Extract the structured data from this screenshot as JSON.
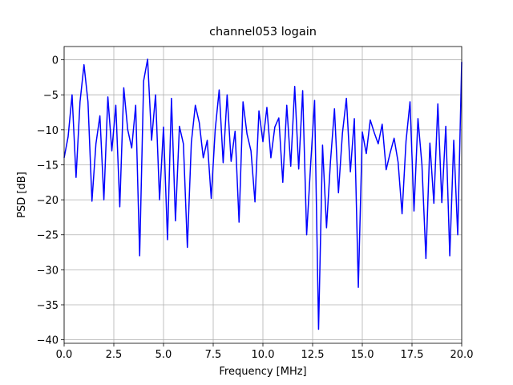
{
  "chart_data": {
    "type": "line",
    "title": "channel053 logain",
    "xlabel": "Frequency [MHz]",
    "ylabel": "PSD [dB]",
    "x": [
      0,
      0.2,
      0.4,
      0.6,
      0.8,
      1,
      1.2,
      1.4,
      1.6,
      1.8,
      2,
      2.2,
      2.4,
      2.6,
      2.8,
      3,
      3.2,
      3.4,
      3.6,
      3.8,
      4,
      4.2,
      4.4,
      4.6,
      4.8,
      5,
      5.2,
      5.4,
      5.6,
      5.8,
      6,
      6.2,
      6.4,
      6.6,
      6.8,
      7,
      7.2,
      7.4,
      7.6,
      7.8,
      8,
      8.2,
      8.4,
      8.6,
      8.8,
      9,
      9.2,
      9.4,
      9.6,
      9.8,
      10,
      10.2,
      10.4,
      10.6,
      10.8,
      11,
      11.2,
      11.4,
      11.6,
      11.8,
      12,
      12.2,
      12.4,
      12.6,
      12.8,
      13,
      13.2,
      13.4,
      13.6,
      13.8,
      14,
      14.2,
      14.4,
      14.6,
      14.8,
      15,
      15.2,
      15.4,
      15.6,
      15.8,
      16,
      16.2,
      16.4,
      16.6,
      16.8,
      17,
      17.2,
      17.4,
      17.6,
      17.8,
      18,
      18.2,
      18.4,
      18.6,
      18.8,
      19,
      19.2,
      19.4,
      19.6,
      19.8,
      20
    ],
    "series": [
      {
        "name": "PSD",
        "color": "#0000ff",
        "values": [
          -14,
          -11,
          -5,
          -16.8,
          -6,
          -0.7,
          -6,
          -20.2,
          -12,
          -8,
          -20,
          -5.3,
          -13,
          -6.5,
          -21,
          -4,
          -10,
          -12.6,
          -6.5,
          -28,
          -3,
          0.1,
          -11.5,
          -5,
          -20,
          -9.6,
          -25.7,
          -5.5,
          -23,
          -9.5,
          -12,
          -26.8,
          -11.8,
          -6.5,
          -9,
          -14,
          -11.5,
          -19.8,
          -10,
          -4.3,
          -14.7,
          -5,
          -14.5,
          -10.2,
          -23.2,
          -6,
          -10.6,
          -13,
          -20.3,
          -7.3,
          -11.7,
          -6.8,
          -14,
          -9.6,
          -8.3,
          -17.5,
          -6.5,
          -15.2,
          -3.8,
          -15.6,
          -4.4,
          -25,
          -15,
          -5.8,
          -38.5,
          -12.2,
          -24,
          -14.5,
          -7,
          -19,
          -10.5,
          -5.5,
          -16,
          -8.4,
          -32.5,
          -10.3,
          -13.4,
          -8.6,
          -10.4,
          -12,
          -9.2,
          -15.7,
          -13.3,
          -11.2,
          -14.6,
          -22,
          -11.6,
          -6,
          -21.6,
          -8.4,
          -15,
          -28.4,
          -11.9,
          -20.5,
          -6.3,
          -20.4,
          -9.5,
          -28,
          -11.5,
          -25,
          -0.3
        ]
      }
    ],
    "xlim": [
      0,
      20
    ],
    "ylim": [
      -40.5,
      1.9
    ],
    "xticks": [
      {
        "value": 0,
        "label": "0.0"
      },
      2.5,
      {
        "value": 5,
        "label": "5.0"
      },
      7.5,
      {
        "value": 10,
        "label": "10.0"
      },
      12.5,
      {
        "value": 15,
        "label": "15.0"
      },
      17.5,
      {
        "value": 20,
        "label": "20.0"
      }
    ],
    "yticks": [
      0,
      {
        "value": -5,
        "label": "−5"
      },
      {
        "value": -10,
        "label": "−10"
      },
      {
        "value": -15,
        "label": "−15"
      },
      {
        "value": -20,
        "label": "−20"
      },
      {
        "value": -25,
        "label": "−25"
      },
      {
        "value": -30,
        "label": "−30"
      },
      {
        "value": -35,
        "label": "−35"
      },
      {
        "value": -40,
        "label": "−40"
      }
    ],
    "grid": true
  }
}
